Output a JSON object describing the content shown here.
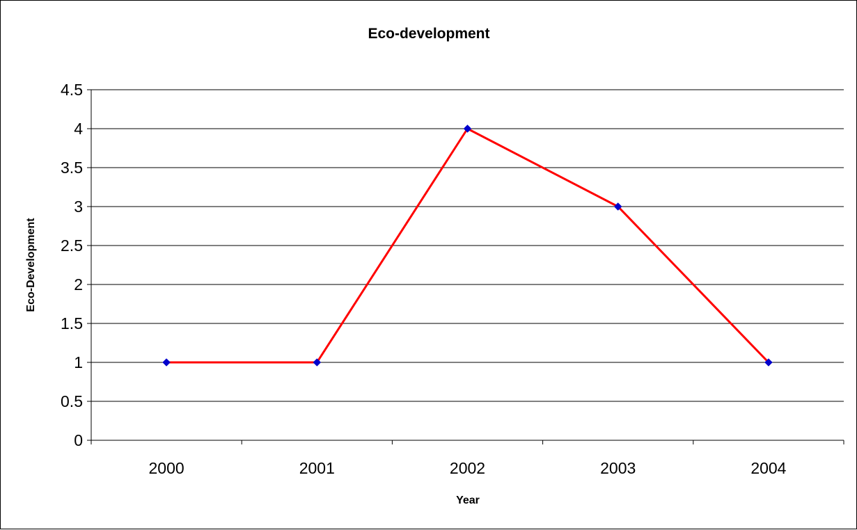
{
  "chart_data": {
    "type": "line",
    "title": "Eco-development",
    "xlabel": "Year",
    "ylabel": "Eco-Development",
    "categories": [
      "2000",
      "2001",
      "2002",
      "2003",
      "2004"
    ],
    "series": [
      {
        "values": [
          1,
          1,
          4,
          3,
          1
        ]
      }
    ],
    "ylim": [
      0,
      4.5
    ],
    "yticks": [
      "0",
      "0.5",
      "1",
      "1.5",
      "2",
      "2.5",
      "3",
      "3.5",
      "4",
      "4.5"
    ],
    "grid": true,
    "legend": "none",
    "colors": {
      "line": "#ff0000",
      "marker": "#0000cc",
      "grid": "#000000"
    }
  }
}
